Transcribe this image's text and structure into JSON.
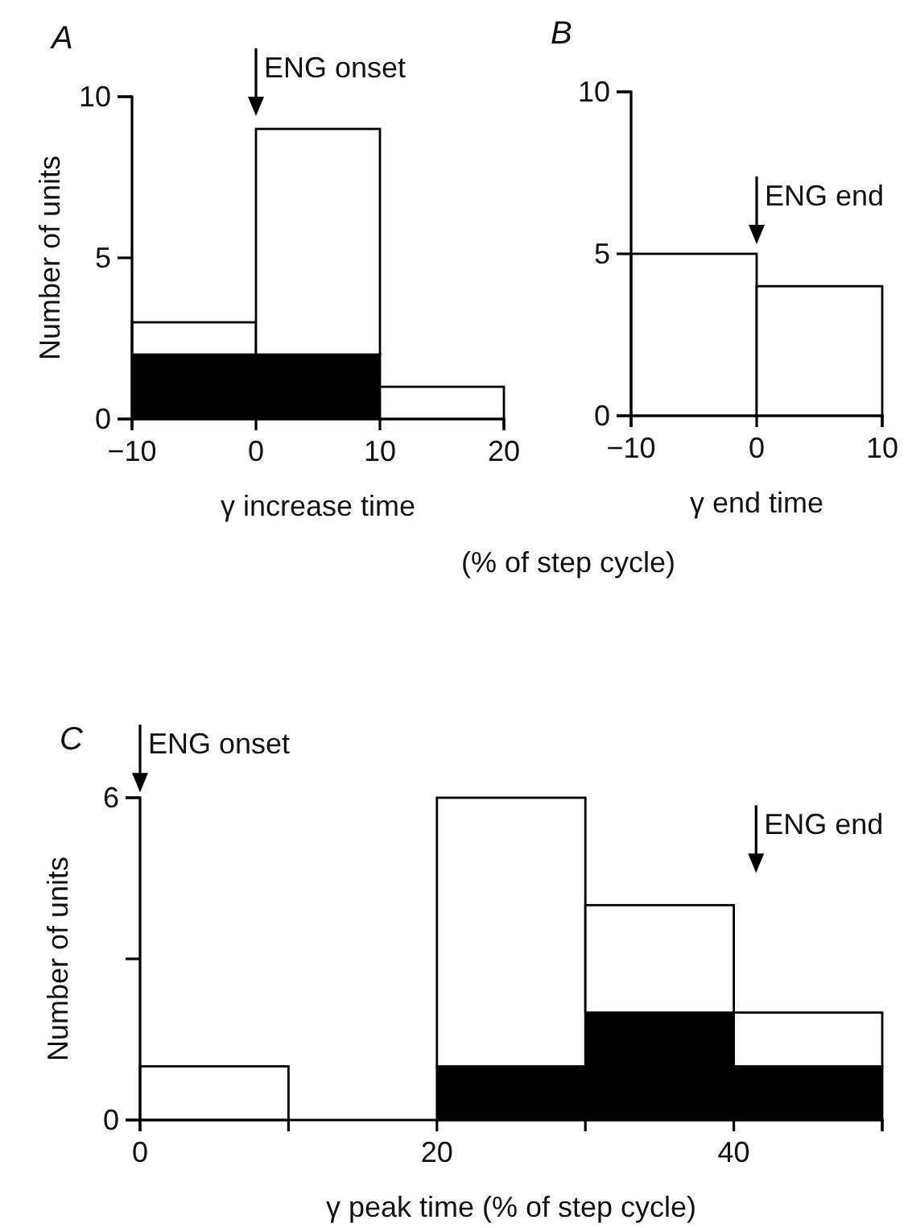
{
  "chart_data": [
    {
      "type": "bar",
      "title": "A",
      "xlabel": "γ increase time",
      "ylabel": "Number of units",
      "stacked": true,
      "x": [
        -5,
        5,
        15
      ],
      "series": [
        {
          "color": "#000000",
          "values": [
            2,
            2,
            0
          ]
        },
        {
          "color": "#ffffff",
          "values": [
            1,
            7,
            1
          ]
        }
      ],
      "xlim": [
        -10,
        20
      ],
      "xticks": [
        -10,
        0,
        10,
        20
      ],
      "ylim": [
        0,
        10
      ],
      "yticks": [
        0,
        5,
        10
      ],
      "grid": false,
      "annotations": [
        "ENG onset",
        "(% of step cycle)"
      ]
    },
    {
      "type": "histogram",
      "title": "B",
      "xlabel": "γ end time",
      "stacked": true,
      "bins": [
        -10,
        0,
        10
      ],
      "series": [
        {
          "color": "#ffffff",
          "values": [
            5,
            4
          ]
        }
      ],
      "xlim": [
        -10,
        10
      ],
      "xticks": [
        -10,
        0,
        10
      ],
      "ylim": [
        0,
        10
      ],
      "yticks": [
        0,
        5,
        10
      ],
      "grid": false,
      "annotations": [
        "ENG end"
      ]
    },
    {
      "type": "bar",
      "title": "C",
      "xlabel": "γ peak time (% of step cycle)",
      "ylabel": "Number of units",
      "stacked": true,
      "x": [
        5,
        15,
        25,
        35,
        45
      ],
      "series": [
        {
          "color": "#000000",
          "values": [
            0,
            0,
            1,
            2,
            1
          ]
        },
        {
          "color": "#ffffff",
          "values": [
            1,
            0,
            5,
            2,
            1
          ]
        }
      ],
      "xlim": [
        0,
        50
      ],
      "xticks": [
        0,
        {
          "value": 10,
          "label": null
        },
        20,
        {
          "value": 30,
          "label": null
        },
        40,
        {
          "value": 50,
          "label": null
        }
      ],
      "ylim": [
        0,
        6
      ],
      "yticks": [
        0,
        {
          "value": 3,
          "label": null
        },
        6
      ],
      "grid": false,
      "annotations": [
        "ENG onset",
        "ENG end"
      ]
    }
  ]
}
